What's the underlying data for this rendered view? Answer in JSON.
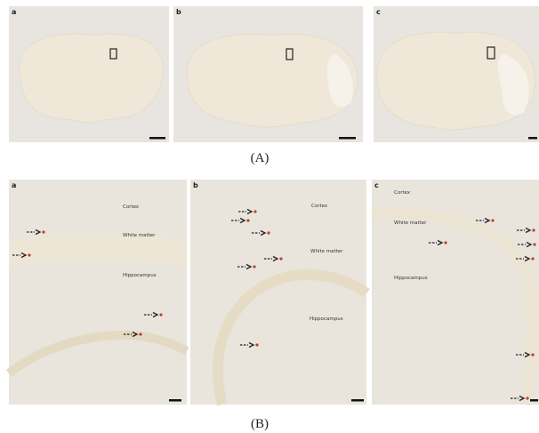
{
  "top_row": {
    "panels": [
      {
        "label": "a"
      },
      {
        "label": "b"
      },
      {
        "label": "c"
      }
    ],
    "caption": "(A)"
  },
  "bottom_row": {
    "panels": [
      {
        "label": "a",
        "regions": [
          "Cortex",
          "White matter",
          "Hippocampus"
        ]
      },
      {
        "label": "b",
        "regions": [
          "Cortex",
          "White matter",
          "Hippocampus"
        ]
      },
      {
        "label": "c",
        "regions": [
          "Cortex",
          "White matter",
          "Hippocampus"
        ]
      }
    ],
    "caption": "(B)"
  }
}
